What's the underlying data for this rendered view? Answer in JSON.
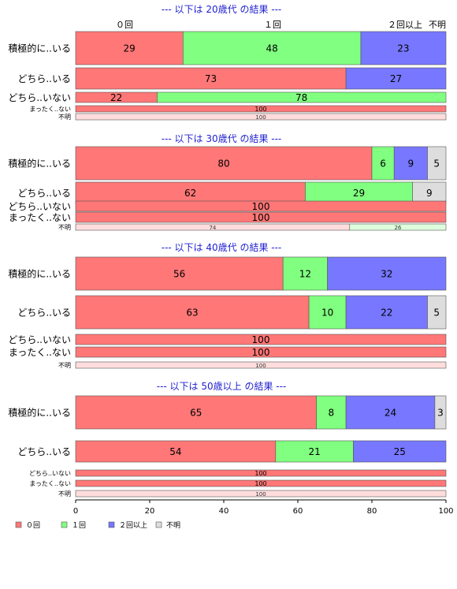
{
  "chart_data": {
    "type": "bar",
    "orientation": "horizontal",
    "stacked": true,
    "xlim": [
      0,
      100
    ],
    "xticks": [
      0,
      20,
      40,
      60,
      80,
      100
    ],
    "column_headers": [
      "０回",
      "１回",
      "２回以上",
      "不明"
    ],
    "legend": {
      "position": "bottom-left",
      "items": [
        {
          "name": "０回",
          "color": "#ff7777"
        },
        {
          "name": "１回",
          "color": "#80ff80"
        },
        {
          "name": "２回以上",
          "color": "#7777ff"
        },
        {
          "name": "不明",
          "color": "#dddddd"
        }
      ]
    },
    "panels": [
      {
        "title": "--- 以下は 20歳代 の結果 ---",
        "rows": [
          {
            "label": "積極的に..いる",
            "size": "large",
            "values": [
              29,
              48,
              23,
              0
            ]
          },
          {
            "label": "どちら..いる",
            "size": "medium",
            "values": [
              73,
              0,
              27,
              0
            ]
          },
          {
            "label": "どちら..いない",
            "size": "small",
            "values": [
              22,
              78,
              0,
              0
            ]
          },
          {
            "label": "まったく..ない",
            "size": "tiny",
            "values": [
              100,
              0,
              0,
              0
            ]
          },
          {
            "label": "不明",
            "size": "tiny",
            "values": [
              100,
              0,
              0,
              0
            ]
          }
        ]
      },
      {
        "title": "--- 以下は 30歳代 の結果 ---",
        "rows": [
          {
            "label": "積極的に..いる",
            "size": "large",
            "values": [
              80,
              6,
              9,
              5
            ]
          },
          {
            "label": "どちら..いる",
            "size": "medium",
            "values": [
              62,
              29,
              0,
              9
            ]
          },
          {
            "label": "どちら..いない",
            "size": "small",
            "values": [
              100,
              0,
              0,
              0
            ]
          },
          {
            "label": "まったく..ない",
            "size": "small",
            "values": [
              100,
              0,
              0,
              0
            ]
          },
          {
            "label": "不明",
            "size": "tiny",
            "values": [
              74,
              26,
              0,
              0
            ]
          }
        ]
      },
      {
        "title": "--- 以下は 40歳代 の結果 ---",
        "rows": [
          {
            "label": "積極的に..いる",
            "size": "large",
            "values": [
              56,
              12,
              32,
              0
            ]
          },
          {
            "label": "どちら..いる",
            "size": "large",
            "values": [
              63,
              10,
              22,
              5
            ]
          },
          {
            "label": "どちら..いない",
            "size": "small",
            "values": [
              100,
              0,
              0,
              0
            ]
          },
          {
            "label": "まったく..ない",
            "size": "small",
            "values": [
              100,
              0,
              0,
              0
            ]
          },
          {
            "label": "不明",
            "size": "tiny",
            "values": [
              100,
              0,
              0,
              0
            ]
          }
        ]
      },
      {
        "title": "--- 以下は 50歳以上 の結果 ---",
        "rows": [
          {
            "label": "積極的に..いる",
            "size": "large",
            "values": [
              65,
              8,
              24,
              3
            ]
          },
          {
            "label": "どちら..いる",
            "size": "medium",
            "values": [
              54,
              21,
              25,
              0
            ]
          },
          {
            "label": "どちら..いない",
            "size": "tiny",
            "values": [
              100,
              0,
              0,
              0
            ]
          },
          {
            "label": "まったく..ない",
            "size": "tiny",
            "values": [
              100,
              0,
              0,
              0
            ]
          },
          {
            "label": "不明",
            "size": "tiny",
            "values": [
              100,
              0,
              0,
              0
            ]
          }
        ]
      }
    ]
  }
}
